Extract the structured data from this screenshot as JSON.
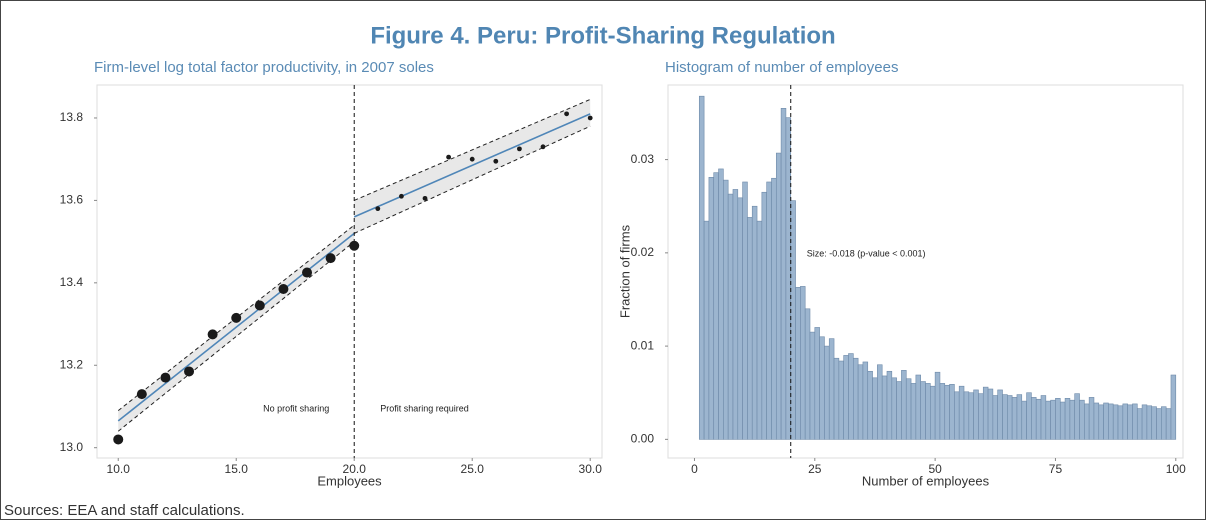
{
  "title": "Figure 4. Peru: Profit-Sharing Regulation",
  "source": "Sources: EEA and staff calculations.",
  "chart_data": [
    {
      "type": "scatter",
      "subtitle": "Firm-level log total factor productivity, in 2007 soles",
      "x_label": "Employees",
      "x": [
        10,
        11,
        12,
        13,
        14,
        15,
        16,
        17,
        18,
        19,
        20,
        21,
        22,
        23,
        24,
        25,
        26,
        27,
        28,
        29,
        30
      ],
      "values": [
        13.02,
        13.13,
        13.17,
        13.185,
        13.275,
        13.315,
        13.345,
        13.385,
        13.425,
        13.46,
        13.49,
        13.58,
        13.61,
        13.605,
        13.705,
        13.7,
        13.695,
        13.725,
        13.73,
        13.81,
        13.8
      ],
      "color": "#1a1a1a",
      "fit_color": "#4f86b8",
      "fit_segments": [
        {
          "x": [
            10,
            20
          ],
          "values": [
            13.065,
            13.52
          ],
          "upper": [
            13.09,
            13.54
          ],
          "lower": [
            13.04,
            13.5
          ]
        },
        {
          "x": [
            20,
            30
          ],
          "values": [
            13.56,
            13.81
          ],
          "upper": [
            13.6,
            13.845
          ],
          "lower": [
            13.52,
            13.78
          ]
        }
      ],
      "threshold": 20,
      "annotations": [
        "No profit sharing",
        "Profit sharing required"
      ],
      "xlim": [
        9.1,
        30.5
      ],
      "ylim": [
        12.975,
        13.88
      ],
      "xticks": [
        {
          "value": 10,
          "label": "10.0"
        },
        {
          "value": 15,
          "label": "15.0"
        },
        {
          "value": 20,
          "label": "20.0"
        },
        {
          "value": 25,
          "label": "25.0"
        },
        {
          "value": 30,
          "label": "30.0"
        }
      ],
      "yticks": [
        {
          "value": 13,
          "label": "13.0"
        },
        13.2,
        13.4,
        13.6,
        13.8
      ]
    },
    {
      "type": "histogram",
      "subtitle": "Histogram of number of employees",
      "x_label": "Number of employees",
      "y_label": "Fraction of firms",
      "color": "#9cb5cf",
      "edge_color": "#6d89a8",
      "bins": [
        1,
        2,
        3,
        4,
        5,
        6,
        7,
        8,
        9,
        10,
        11,
        12,
        13,
        14,
        15,
        16,
        17,
        18,
        19,
        20,
        21,
        22,
        23,
        24,
        25,
        26,
        27,
        28,
        29,
        30,
        31,
        32,
        33,
        34,
        35,
        36,
        37,
        38,
        39,
        40,
        41,
        42,
        43,
        44,
        45,
        46,
        47,
        48,
        49,
        50,
        51,
        52,
        53,
        54,
        55,
        56,
        57,
        58,
        59,
        60,
        61,
        62,
        63,
        64,
        65,
        66,
        67,
        68,
        69,
        70,
        71,
        72,
        73,
        74,
        75,
        76,
        77,
        78,
        79,
        80,
        81,
        82,
        83,
        84,
        85,
        86,
        87,
        88,
        89,
        90,
        91,
        92,
        93,
        94,
        95,
        96,
        97,
        98,
        99,
        100
      ],
      "values": [
        0.0368,
        0.0234,
        0.0281,
        0.0286,
        0.029,
        0.0278,
        0.0263,
        0.0268,
        0.0259,
        0.0276,
        0.0238,
        0.025,
        0.0234,
        0.0265,
        0.0276,
        0.028,
        0.0307,
        0.0355,
        0.0345,
        0.0256,
        0.0163,
        0.0164,
        0.014,
        0.0115,
        0.012,
        0.011,
        0.01,
        0.0108,
        0.0087,
        0.0084,
        0.009,
        0.0092,
        0.0087,
        0.008,
        0.0083,
        0.0073,
        0.0066,
        0.008,
        0.0068,
        0.0073,
        0.0066,
        0.0062,
        0.0074,
        0.0065,
        0.006,
        0.0069,
        0.0062,
        0.006,
        0.0057,
        0.0072,
        0.006,
        0.0058,
        0.0059,
        0.0051,
        0.0057,
        0.0051,
        0.005,
        0.0053,
        0.0049,
        0.0056,
        0.0054,
        0.0047,
        0.0053,
        0.0048,
        0.0047,
        0.0045,
        0.0048,
        0.0041,
        0.005,
        0.0045,
        0.0043,
        0.0047,
        0.0041,
        0.0042,
        0.0044,
        0.004,
        0.0044,
        0.0042,
        0.0049,
        0.0042,
        0.0038,
        0.0045,
        0.0039,
        0.0037,
        0.0039,
        0.0038,
        0.0037,
        0.0036,
        0.0038,
        0.0037,
        0.0038,
        0.0033,
        0.0037,
        0.0036,
        0.0035,
        0.0033,
        0.0035,
        0.0033,
        0.0069
      ],
      "threshold": 20,
      "annotations": [
        "Size: -0.018 (p-value < 0.001)"
      ],
      "xlim": [
        -5.5,
        101.5
      ],
      "ylim": [
        -0.002,
        0.038
      ],
      "xticks": [
        0,
        25,
        50,
        75,
        100
      ],
      "yticks": [
        {
          "value": 0,
          "label": "0.00"
        },
        0.01,
        0.02,
        0.03
      ]
    }
  ]
}
